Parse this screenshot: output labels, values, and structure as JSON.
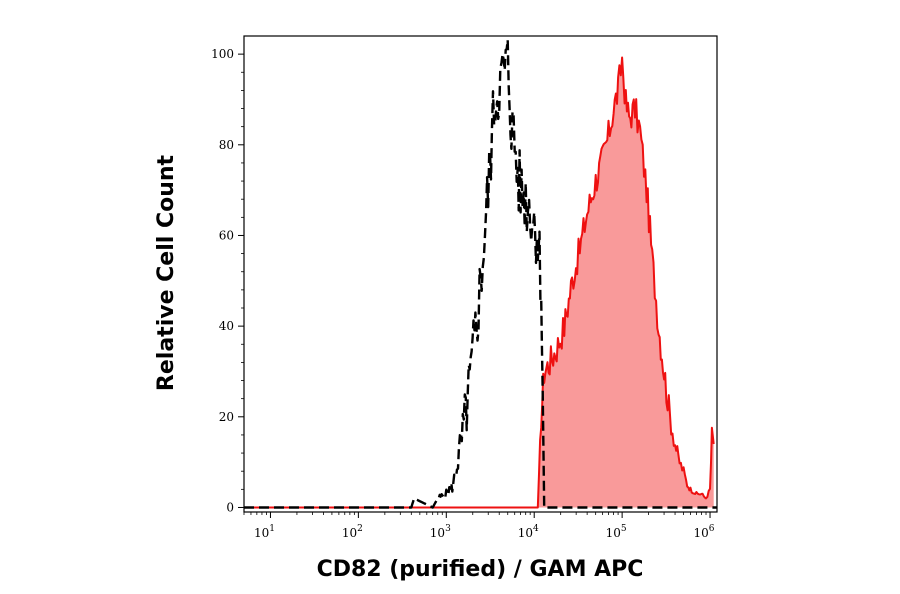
{
  "chart_data": {
    "type": "area",
    "title": "",
    "xlabel": "CD82 (purified) / GAM APC",
    "ylabel": "Relative Cell Count",
    "x_scale": "log",
    "xlim": [
      5,
      1200000
    ],
    "ylim": [
      -1,
      104
    ],
    "x_tick_labels": [
      {
        "base": "10",
        "exp": "1",
        "value": 10
      },
      {
        "base": "10",
        "exp": "2",
        "value": 100
      },
      {
        "base": "10",
        "exp": "3",
        "value": 1000
      },
      {
        "base": "10",
        "exp": "4",
        "value": 10000
      },
      {
        "base": "10",
        "exp": "5",
        "value": 100000
      },
      {
        "base": "10",
        "exp": "6",
        "value": 1000000
      }
    ],
    "y_ticks": [
      0,
      20,
      40,
      60,
      80,
      100
    ],
    "y_tick_labels": [
      "0",
      "20",
      "40",
      "60",
      "80",
      "100"
    ],
    "colors": {
      "sample_line": "#ee1111",
      "sample_fill": "#f99a9a",
      "control_line": "#000000"
    },
    "series": [
      {
        "style": "dashed, unfilled",
        "x": [
          5,
          400,
          430,
          700,
          800,
          1000,
          1200,
          1500,
          1800,
          2200,
          2600,
          3000,
          3300,
          3600,
          4000,
          4500,
          5000,
          5500,
          6000,
          6500,
          7000,
          8000,
          9000,
          10000,
          11000,
          11500,
          12000,
          12500,
          13000,
          1200000
        ],
        "y": [
          0,
          0,
          2,
          0,
          2,
          3,
          5,
          15,
          25,
          40,
          55,
          70,
          82,
          90,
          93,
          96,
          98,
          85,
          80,
          73,
          70,
          68,
          66,
          63,
          60,
          55,
          50,
          25,
          0,
          0
        ]
      },
      {
        "style": "solid, filled",
        "x": [
          5,
          11000,
          12000,
          13000,
          15000,
          18000,
          22000,
          27000,
          33000,
          40000,
          50000,
          60000,
          70000,
          80000,
          90000,
          100000,
          110000,
          120000,
          140000,
          160000,
          190000,
          220000,
          260000,
          300000,
          350000,
          400000,
          450000,
          500000,
          550000,
          600000,
          700000,
          800000,
          900000,
          1000000,
          1050000,
          1100000
        ],
        "y": [
          0,
          0,
          20,
          30,
          32,
          35,
          40,
          50,
          57,
          65,
          72,
          77,
          82,
          88,
          92,
          99,
          89,
          86,
          88,
          83,
          70,
          55,
          40,
          30,
          20,
          14,
          10,
          8,
          5,
          4,
          3,
          3,
          2,
          4,
          16,
          14
        ]
      }
    ]
  }
}
